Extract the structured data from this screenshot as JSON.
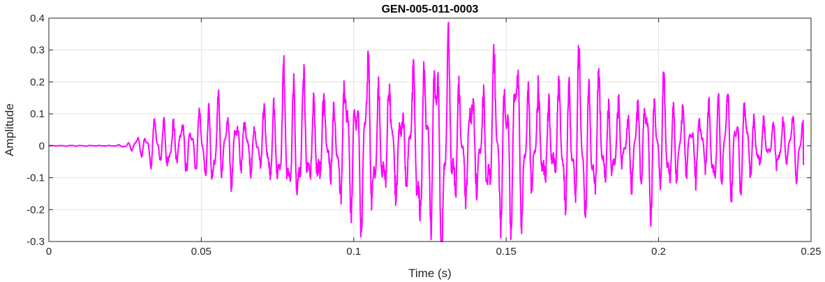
{
  "chart_data": {
    "type": "line",
    "title": "GEN-005-011-0003",
    "xlabel": "Time (s)",
    "ylabel": "Amplitude",
    "xlim": [
      0,
      0.25
    ],
    "ylim": [
      -0.3,
      0.4
    ],
    "xticks": [
      0,
      0.05,
      0.1,
      0.15,
      0.2,
      0.25
    ],
    "xtick_labels": [
      "0",
      "0.05",
      "0.1",
      "0.15",
      "0.2",
      "0.25"
    ],
    "yticks": [
      -0.3,
      -0.2,
      -0.1,
      0,
      0.1,
      0.2,
      0.3,
      0.4
    ],
    "ytick_labels": [
      "-0.3",
      "-0.2",
      "-0.1",
      "0",
      "0.1",
      "0.2",
      "0.3",
      "0.4"
    ],
    "grid": true,
    "box": true,
    "series_color": "#ff00ff",
    "signal": {
      "start": 0,
      "end": 0.2475,
      "envelope": [
        {
          "t": 0.0,
          "a": 0.001
        },
        {
          "t": 0.02,
          "a": 0.002
        },
        {
          "t": 0.025,
          "a": 0.006
        },
        {
          "t": 0.03,
          "a": 0.03
        },
        {
          "t": 0.033,
          "a": 0.06
        },
        {
          "t": 0.036,
          "a": 0.11
        },
        {
          "t": 0.042,
          "a": 0.14
        },
        {
          "t": 0.05,
          "a": 0.13
        },
        {
          "t": 0.06,
          "a": 0.14
        },
        {
          "t": 0.07,
          "a": 0.15
        },
        {
          "t": 0.078,
          "a": 0.21
        },
        {
          "t": 0.086,
          "a": 0.27
        },
        {
          "t": 0.095,
          "a": 0.25
        },
        {
          "t": 0.105,
          "a": 0.25
        },
        {
          "t": 0.115,
          "a": 0.29
        },
        {
          "t": 0.125,
          "a": 0.33
        },
        {
          "t": 0.132,
          "a": 0.34
        },
        {
          "t": 0.14,
          "a": 0.3
        },
        {
          "t": 0.15,
          "a": 0.28
        },
        {
          "t": 0.16,
          "a": 0.26
        },
        {
          "t": 0.17,
          "a": 0.27
        },
        {
          "t": 0.18,
          "a": 0.23
        },
        {
          "t": 0.19,
          "a": 0.2
        },
        {
          "t": 0.2,
          "a": 0.19
        },
        {
          "t": 0.21,
          "a": 0.18
        },
        {
          "t": 0.22,
          "a": 0.17
        },
        {
          "t": 0.23,
          "a": 0.15
        },
        {
          "t": 0.24,
          "a": 0.12
        },
        {
          "t": 0.2475,
          "a": 0.1
        }
      ],
      "final_value": -0.06
    }
  }
}
